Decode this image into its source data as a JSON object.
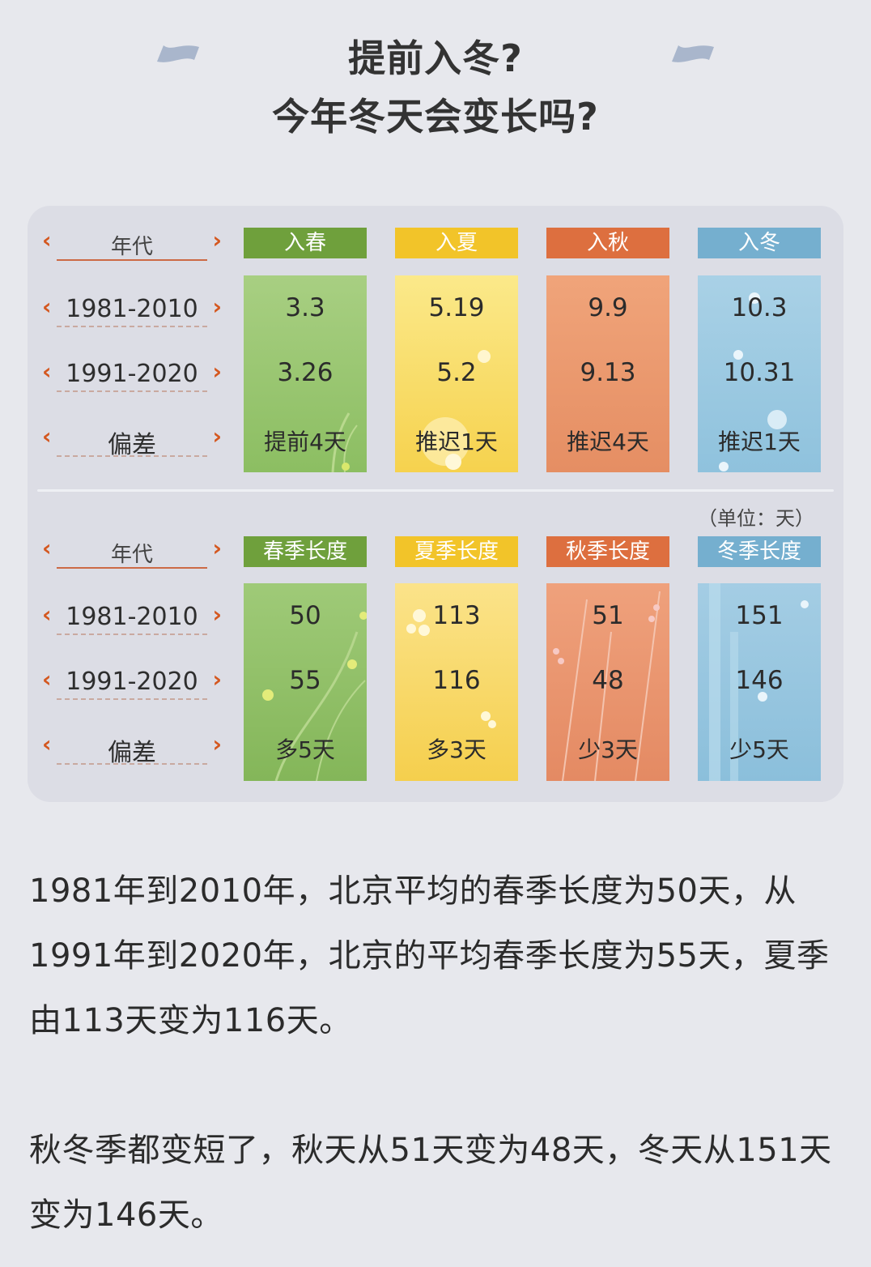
{
  "title": {
    "line1": "提前入冬?",
    "line2": "今年冬天会变长吗?"
  },
  "colors": {
    "spring": "#6fa03c",
    "summer": "#f2c429",
    "autumn": "#dd6f3f",
    "winter": "#75afcf",
    "arrow": "#d4571f"
  },
  "table1": {
    "row_labels": {
      "header": "年代",
      "r1": "1981-2010",
      "r2": "1991-2020",
      "r3": "偏差"
    },
    "columns": [
      {
        "header": "入春",
        "v1": "3.3",
        "v2": "3.26",
        "diff": "提前4天"
      },
      {
        "header": "入夏",
        "v1": "5.19",
        "v2": "5.2",
        "diff": "推迟1天"
      },
      {
        "header": "入秋",
        "v1": "9.9",
        "v2": "9.13",
        "diff": "推迟4天"
      },
      {
        "header": "入冬",
        "v1": "10.3",
        "v2": "10.31",
        "diff": "推迟1天"
      }
    ]
  },
  "unit": "（单位：天）",
  "table2": {
    "row_labels": {
      "header": "年代",
      "r1": "1981-2010",
      "r2": "1991-2020",
      "r3": "偏差"
    },
    "columns": [
      {
        "header": "春季长度",
        "v1": "50",
        "v2": "55",
        "diff": "多5天"
      },
      {
        "header": "夏季长度",
        "v1": "113",
        "v2": "116",
        "diff": "多3天"
      },
      {
        "header": "秋季长度",
        "v1": "51",
        "v2": "48",
        "diff": "少3天"
      },
      {
        "header": "冬季长度",
        "v1": "151",
        "v2": "146",
        "diff": "少5天"
      }
    ]
  },
  "paragraphs": {
    "p1": "1981年到2010年，北京平均的春季长度为50天，从1991年到2020年，北京的平均春季长度为55天，夏季由113天变为116天。",
    "p2": "秋冬季都变短了，秋天从51天变为48天，冬天从151天变为146天。"
  }
}
